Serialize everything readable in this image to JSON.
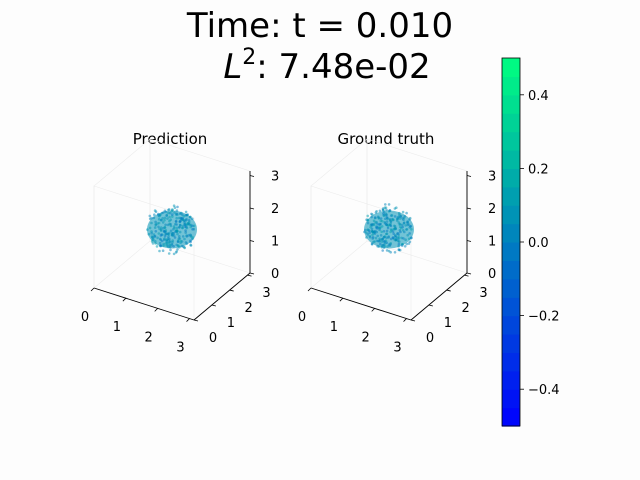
{
  "figure": {
    "title_line1": "Time: t = 0.010",
    "title_line2_prefix": "L",
    "title_line2_sup": "2",
    "title_line2_value": ": 7.48e-02"
  },
  "chart_data": [
    {
      "type": "scatter",
      "subtitle": "Prediction",
      "axes": "3d",
      "x_ticks": [
        "0",
        "1",
        "2",
        "3"
      ],
      "y_ticks": [
        "0",
        "1",
        "2",
        "3"
      ],
      "z_ticks": [
        "0",
        "1",
        "2",
        "3"
      ],
      "xlim": [
        0,
        3.14
      ],
      "ylim": [
        0,
        3.14
      ],
      "zlim": [
        0,
        3.14
      ],
      "point_cloud": {
        "shape": "sphere",
        "center": [
          1.57,
          1.57,
          1.57
        ],
        "radius": 0.7,
        "value": 0.05
      }
    },
    {
      "type": "scatter",
      "subtitle": "Ground truth",
      "axes": "3d",
      "x_ticks": [
        "0",
        "1",
        "2",
        "3"
      ],
      "y_ticks": [
        "0",
        "1",
        "2",
        "3"
      ],
      "z_ticks": [
        "0",
        "1",
        "2",
        "3"
      ],
      "xlim": [
        0,
        3.14
      ],
      "ylim": [
        0,
        3.14
      ],
      "zlim": [
        0,
        3.14
      ],
      "point_cloud": {
        "shape": "sphere",
        "center": [
          1.57,
          1.57,
          1.57
        ],
        "radius": 0.7,
        "value": 0.05
      }
    }
  ],
  "colorbar": {
    "range": [
      -0.5,
      0.5
    ],
    "ticks": [
      {
        "value": 0.4,
        "label": "0.4"
      },
      {
        "value": 0.2,
        "label": "0.2"
      },
      {
        "value": 0.0,
        "label": "0.0"
      },
      {
        "value": -0.2,
        "label": "−0.2"
      },
      {
        "value": -0.4,
        "label": "−0.4"
      }
    ],
    "levels": 20,
    "color_low": "#0000ff",
    "color_high": "#00ff80"
  }
}
